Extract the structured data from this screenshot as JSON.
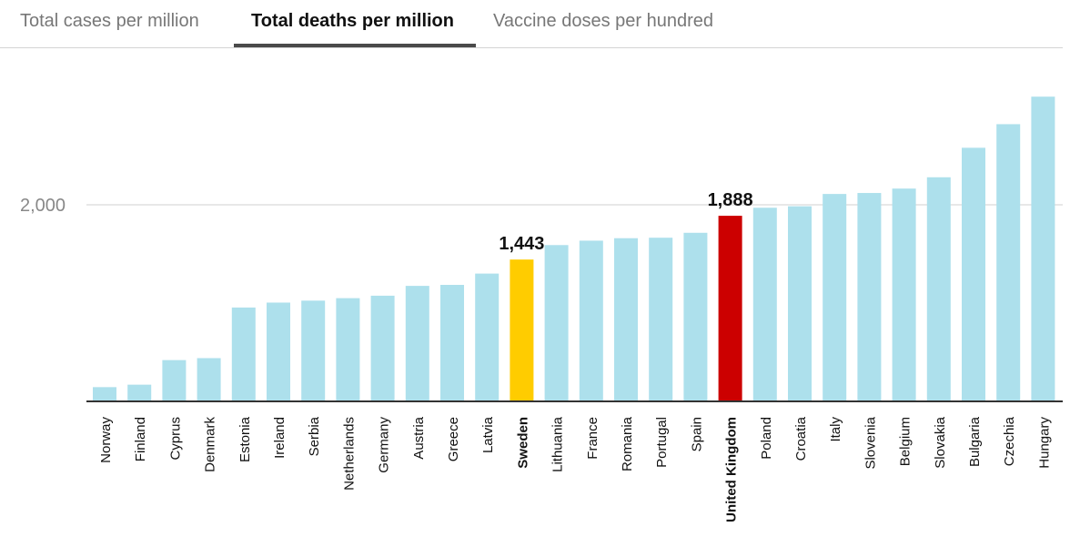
{
  "tabs": [
    {
      "label": "Total cases per million",
      "active": false
    },
    {
      "label": "Total deaths per million",
      "active": true
    },
    {
      "label": "Vaccine doses per hundred",
      "active": false
    }
  ],
  "colors": {
    "bar_default": "#ade0ec",
    "bar_highlight_sweden": "#ffcc00",
    "bar_highlight_uk": "#cc0000",
    "gridline": "#e0e0e0",
    "baseline": "#333333",
    "tick_label": "#888888",
    "category_label": "#111111",
    "value_label": "#111111"
  },
  "chart_data": {
    "type": "bar",
    "title": "Total deaths per million",
    "xlabel": "",
    "ylabel": "",
    "ylim": [
      0,
      3200
    ],
    "yticks": [
      2000
    ],
    "ytick_labels": [
      "2,000"
    ],
    "grid": true,
    "categories": [
      "Norway",
      "Finland",
      "Cyprus",
      "Denmark",
      "Estonia",
      "Ireland",
      "Serbia",
      "Netherlands",
      "Germany",
      "Austria",
      "Greece",
      "Latvia",
      "Sweden",
      "Lithuania",
      "France",
      "Romania",
      "Portugal",
      "Spain",
      "United Kingdom",
      "Poland",
      "Croatia",
      "Italy",
      "Slovenia",
      "Belgium",
      "Slovakia",
      "Bulgaria",
      "Czechia",
      "Hungary"
    ],
    "values": [
      145,
      170,
      420,
      440,
      955,
      1005,
      1025,
      1050,
      1075,
      1175,
      1185,
      1300,
      1443,
      1590,
      1635,
      1660,
      1665,
      1715,
      1888,
      1970,
      1985,
      2110,
      2120,
      2165,
      2280,
      2580,
      2820,
      3100
    ],
    "highlights": [
      {
        "category": "Sweden",
        "label": "1,443",
        "color": "#ffcc00"
      },
      {
        "category": "United Kingdom",
        "label": "1,888",
        "color": "#cc0000"
      }
    ]
  }
}
